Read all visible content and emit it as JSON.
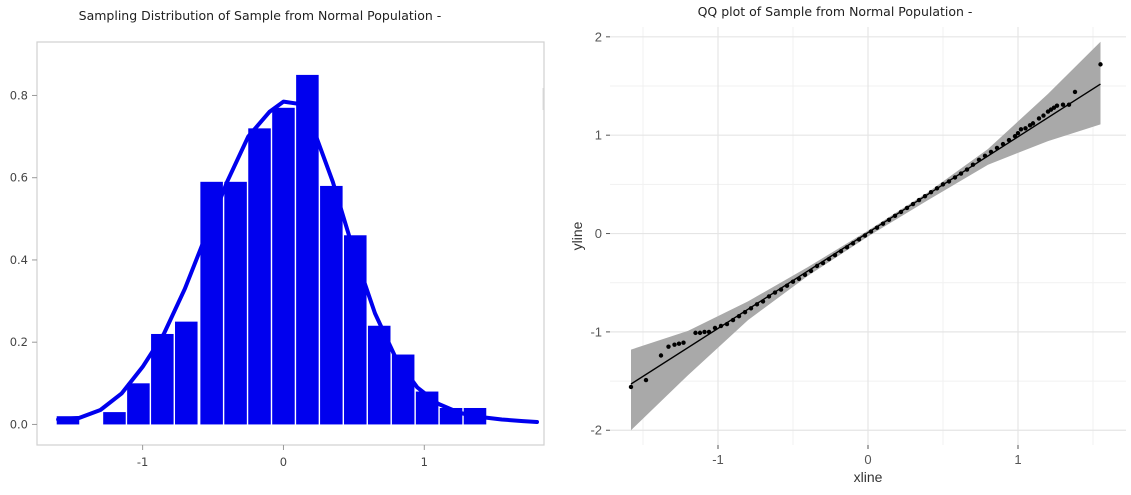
{
  "chart_data": [
    {
      "type": "bar",
      "title": "Sampling Distribution of Sample from Normal Population -",
      "xlabel": "",
      "ylabel": "",
      "xlim": [
        -1.75,
        1.85
      ],
      "ylim": [
        -0.05,
        0.93
      ],
      "xticks": [
        -1,
        0,
        1
      ],
      "yticks": [
        0.0,
        0.2,
        0.4,
        0.6,
        0.8
      ],
      "ytick_labels": [
        "0.0",
        "0.2",
        "0.4",
        "0.6",
        "0.8"
      ],
      "bar_color": "#0000ee",
      "bins": [
        {
          "x0": -1.61,
          "x1": -1.45,
          "value": 0.02
        },
        {
          "x0": -1.28,
          "x1": -1.12,
          "value": 0.03
        },
        {
          "x0": -1.11,
          "x1": -0.95,
          "value": 0.1
        },
        {
          "x0": -0.94,
          "x1": -0.78,
          "value": 0.22
        },
        {
          "x0": -0.77,
          "x1": -0.61,
          "value": 0.25
        },
        {
          "x0": -0.59,
          "x1": -0.43,
          "value": 0.59
        },
        {
          "x0": -0.42,
          "x1": -0.26,
          "value": 0.59
        },
        {
          "x0": -0.25,
          "x1": -0.09,
          "value": 0.72
        },
        {
          "x0": -0.08,
          "x1": 0.08,
          "value": 0.77
        },
        {
          "x0": 0.09,
          "x1": 0.25,
          "value": 0.85
        },
        {
          "x0": 0.26,
          "x1": 0.42,
          "value": 0.58
        },
        {
          "x0": 0.43,
          "x1": 0.59,
          "value": 0.46
        },
        {
          "x0": 0.6,
          "x1": 0.76,
          "value": 0.24
        },
        {
          "x0": 0.77,
          "x1": 0.93,
          "value": 0.17
        },
        {
          "x0": 0.94,
          "x1": 1.1,
          "value": 0.08
        },
        {
          "x0": 1.11,
          "x1": 1.27,
          "value": 0.04
        },
        {
          "x0": 1.28,
          "x1": 1.44,
          "value": 0.04
        }
      ],
      "density_line": {
        "color": "#0000ee",
        "x": [
          -1.6,
          -1.45,
          -1.3,
          -1.15,
          -1.0,
          -0.85,
          -0.7,
          -0.55,
          -0.4,
          -0.25,
          -0.1,
          0.0,
          0.1,
          0.2,
          0.35,
          0.5,
          0.65,
          0.8,
          0.95,
          1.1,
          1.25,
          1.4,
          1.55,
          1.7,
          1.8
        ],
        "y": [
          0.012,
          0.016,
          0.035,
          0.075,
          0.14,
          0.22,
          0.33,
          0.46,
          0.59,
          0.7,
          0.76,
          0.785,
          0.78,
          0.73,
          0.59,
          0.42,
          0.27,
          0.16,
          0.09,
          0.05,
          0.028,
          0.018,
          0.012,
          0.008,
          0.006
        ]
      }
    },
    {
      "type": "scatter",
      "title": "QQ plot of Sample from Normal Population -",
      "xlabel": "xline",
      "ylabel": "yline",
      "xlim": [
        -1.72,
        1.72
      ],
      "ylim": [
        -2.15,
        2.1
      ],
      "xticks": [
        -1,
        0,
        1
      ],
      "yticks": [
        -2,
        -1,
        0,
        1,
        2
      ],
      "xtick_labels": [
        "-1",
        "0",
        "1"
      ],
      "ytick_labels": [
        "-2",
        "-1",
        "0",
        "1",
        "2"
      ],
      "grid": true,
      "panel_color": "#ffffff",
      "grid_color": "#e5e5e5",
      "band_color": "#a9a9a9",
      "point_color": "#000000",
      "fit_line": {
        "x": [
          -1.58,
          1.55
        ],
        "y": [
          -1.53,
          1.52
        ]
      },
      "confidence_band": {
        "x": [
          -1.58,
          -1.2,
          -0.8,
          -0.4,
          0.0,
          0.4,
          0.8,
          1.2,
          1.55
        ],
        "upper": [
          -1.18,
          -0.99,
          -0.69,
          -0.34,
          0.03,
          0.42,
          0.86,
          1.42,
          1.95
        ],
        "lower": [
          -2.0,
          -1.44,
          -0.88,
          -0.43,
          -0.03,
          0.34,
          0.7,
          0.94,
          1.11
        ]
      },
      "points": [
        [
          -1.58,
          -1.56
        ],
        [
          -1.48,
          -1.49
        ],
        [
          -1.38,
          -1.24
        ],
        [
          -1.33,
          -1.15
        ],
        [
          -1.29,
          -1.13
        ],
        [
          -1.26,
          -1.12
        ],
        [
          -1.23,
          -1.11
        ],
        [
          -1.15,
          -1.01
        ],
        [
          -1.12,
          -1.01
        ],
        [
          -1.09,
          -1.0
        ],
        [
          -1.06,
          -1.0
        ],
        [
          -1.02,
          -0.96
        ],
        [
          -0.98,
          -0.94
        ],
        [
          -0.94,
          -0.92
        ],
        [
          -0.9,
          -0.88
        ],
        [
          -0.86,
          -0.84
        ],
        [
          -0.82,
          -0.8
        ],
        [
          -0.78,
          -0.76
        ],
        [
          -0.74,
          -0.72
        ],
        [
          -0.7,
          -0.69
        ],
        [
          -0.66,
          -0.64
        ],
        [
          -0.62,
          -0.6
        ],
        [
          -0.58,
          -0.57
        ],
        [
          -0.54,
          -0.53
        ],
        [
          -0.5,
          -0.49
        ],
        [
          -0.46,
          -0.46
        ],
        [
          -0.42,
          -0.42
        ],
        [
          -0.38,
          -0.38
        ],
        [
          -0.34,
          -0.33
        ],
        [
          -0.3,
          -0.3
        ],
        [
          -0.26,
          -0.26
        ],
        [
          -0.22,
          -0.22
        ],
        [
          -0.18,
          -0.18
        ],
        [
          -0.14,
          -0.14
        ],
        [
          -0.1,
          -0.1
        ],
        [
          -0.06,
          -0.06
        ],
        [
          -0.02,
          -0.02
        ],
        [
          0.02,
          0.02
        ],
        [
          0.06,
          0.06
        ],
        [
          0.1,
          0.1
        ],
        [
          0.14,
          0.14
        ],
        [
          0.18,
          0.18
        ],
        [
          0.22,
          0.22
        ],
        [
          0.26,
          0.26
        ],
        [
          0.3,
          0.3
        ],
        [
          0.34,
          0.34
        ],
        [
          0.38,
          0.38
        ],
        [
          0.42,
          0.42
        ],
        [
          0.46,
          0.46
        ],
        [
          0.5,
          0.5
        ],
        [
          0.54,
          0.53
        ],
        [
          0.58,
          0.57
        ],
        [
          0.62,
          0.61
        ],
        [
          0.66,
          0.65
        ],
        [
          0.7,
          0.7
        ],
        [
          0.74,
          0.75
        ],
        [
          0.78,
          0.79
        ],
        [
          0.82,
          0.83
        ],
        [
          0.86,
          0.87
        ],
        [
          0.9,
          0.91
        ],
        [
          0.94,
          0.95
        ],
        [
          0.98,
          0.99
        ],
        [
          1.0,
          1.02
        ],
        [
          1.02,
          1.06
        ],
        [
          1.05,
          1.07
        ],
        [
          1.08,
          1.1
        ],
        [
          1.1,
          1.12
        ],
        [
          1.14,
          1.17
        ],
        [
          1.17,
          1.2
        ],
        [
          1.2,
          1.24
        ],
        [
          1.22,
          1.26
        ],
        [
          1.24,
          1.28
        ],
        [
          1.26,
          1.3
        ],
        [
          1.3,
          1.31
        ],
        [
          1.34,
          1.31
        ],
        [
          1.38,
          1.44
        ],
        [
          1.55,
          1.72
        ]
      ]
    }
  ]
}
